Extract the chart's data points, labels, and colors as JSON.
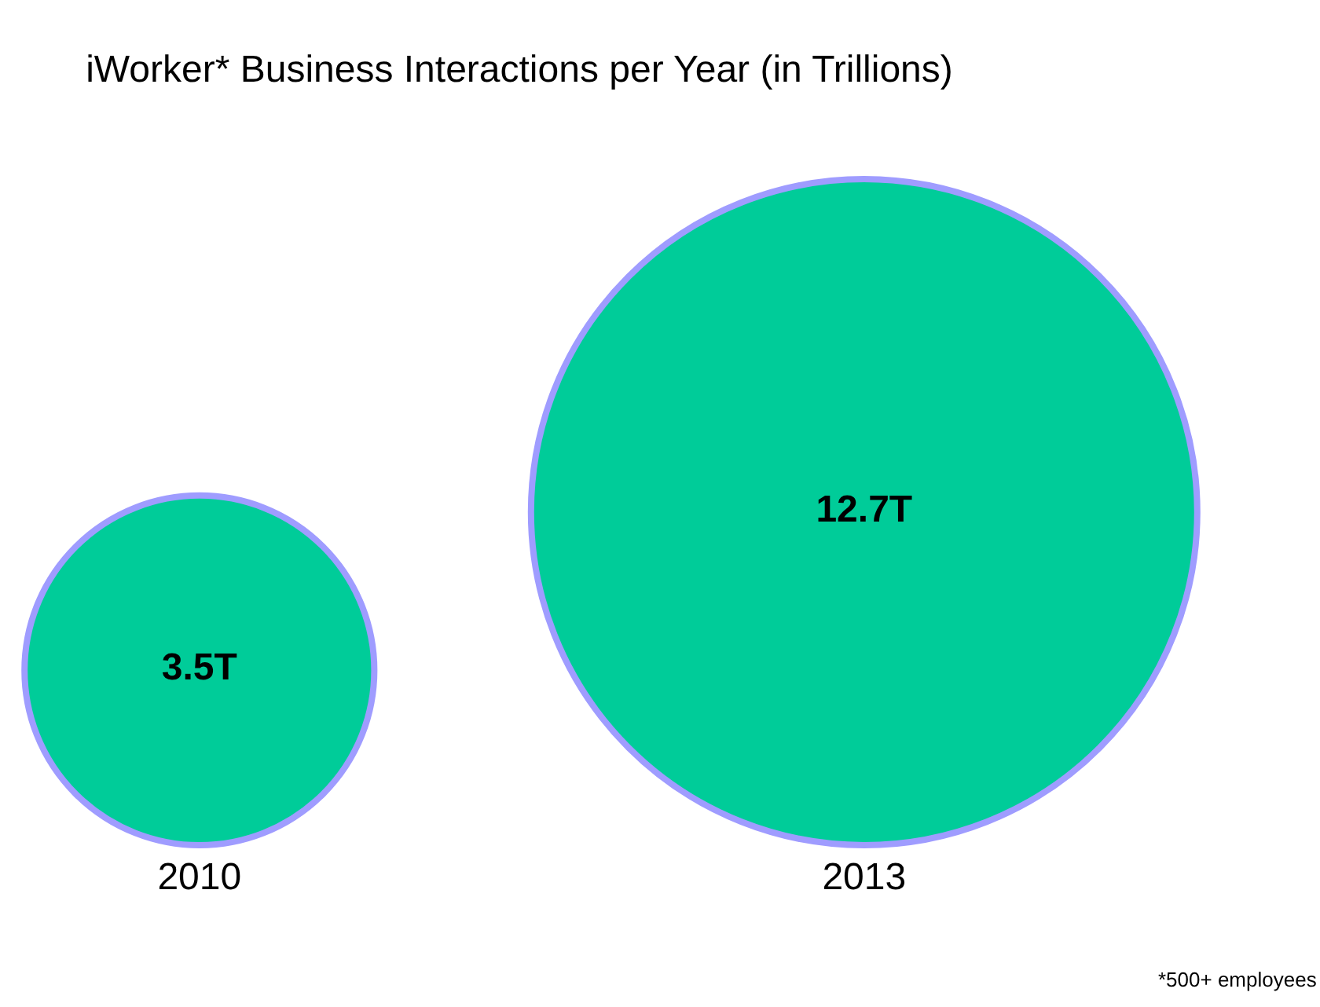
{
  "chart_data": {
    "type": "other",
    "title": "iWorker* Business Interactions per Year (in Trillions)",
    "categories": [
      "2010",
      "2013"
    ],
    "values": [
      3.5,
      12.7
    ],
    "value_labels": [
      "3.5T",
      "12.7T"
    ],
    "color": "#00cc99",
    "annotations": [
      "*500+ employees"
    ]
  }
}
